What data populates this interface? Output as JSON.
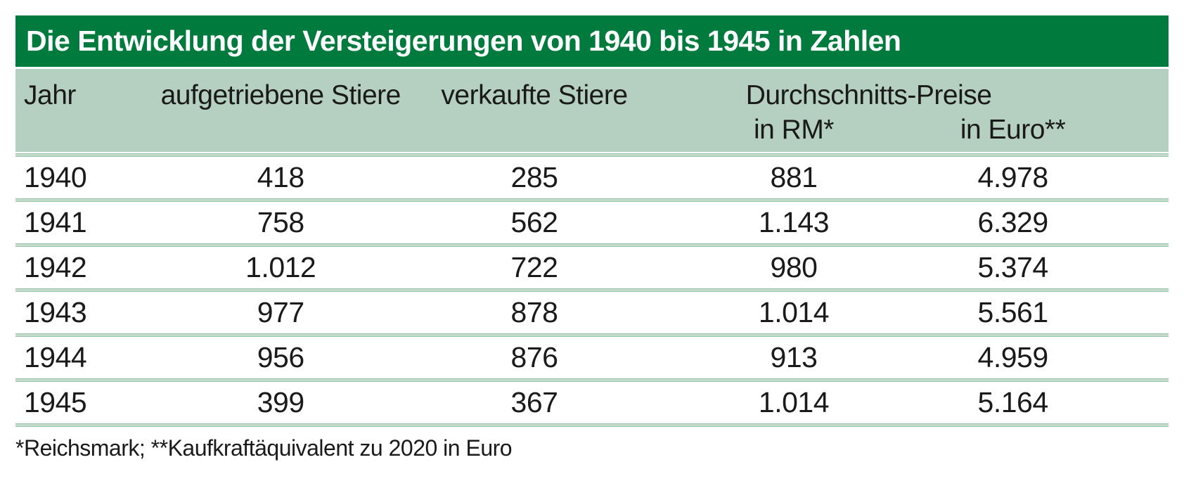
{
  "title": "Die Entwicklung der Versteigerungen von 1940 bis 1945 in Zahlen",
  "header": {
    "year": "Jahr",
    "raised": "aufgetriebene Stiere",
    "sold": "verkaufte Stiere",
    "prices_group": "Durchschnitts-Preise",
    "price_rm": "in RM*",
    "price_euro": "in Euro**"
  },
  "rows": [
    {
      "year": "1940",
      "raised": "418",
      "sold": "285",
      "rm": "881",
      "euro": "4.978"
    },
    {
      "year": "1941",
      "raised": "758",
      "sold": "562",
      "rm": "1.143",
      "euro": "6.329"
    },
    {
      "year": "1942",
      "raised": "1.012",
      "sold": "722",
      "rm": "980",
      "euro": "5.374"
    },
    {
      "year": "1943",
      "raised": "977",
      "sold": "878",
      "rm": "1.014",
      "euro": "5.561"
    },
    {
      "year": "1944",
      "raised": "956",
      "sold": "876",
      "rm": "913",
      "euro": "4.959"
    },
    {
      "year": "1945",
      "raised": "399",
      "sold": "367",
      "rm": "1.014",
      "euro": "5.164"
    }
  ],
  "footnote": "*Reichsmark; **Kaufkraftäquivalent zu 2020 in Euro",
  "colors": {
    "title_bg": "#017B3D",
    "title_text": "#FFFFFF",
    "header_bg": "#B5CFC0",
    "divider_edge": "#8FBCA2",
    "divider_center": "#D8E8DC",
    "text": "#1A1A1A"
  },
  "chart_data": {
    "type": "table",
    "title": "Die Entwicklung der Versteigerungen von 1940 bis 1945 in Zahlen",
    "categories": [
      "1940",
      "1941",
      "1942",
      "1943",
      "1944",
      "1945"
    ],
    "series": [
      {
        "name": "aufgetriebene Stiere",
        "values": [
          418,
          758,
          1012,
          977,
          956,
          399
        ]
      },
      {
        "name": "verkaufte Stiere",
        "values": [
          285,
          562,
          722,
          878,
          876,
          367
        ]
      },
      {
        "name": "Durchschnitts-Preise in RM",
        "values": [
          881,
          1143,
          980,
          1014,
          913,
          1014
        ]
      },
      {
        "name": "Durchschnitts-Preise in Euro (Kaufkraftäquivalent zu 2020)",
        "values": [
          4978,
          6329,
          5374,
          5561,
          4959,
          5164
        ]
      }
    ],
    "footnote": "*Reichsmark; **Kaufkraftäquivalent zu 2020 in Euro"
  }
}
